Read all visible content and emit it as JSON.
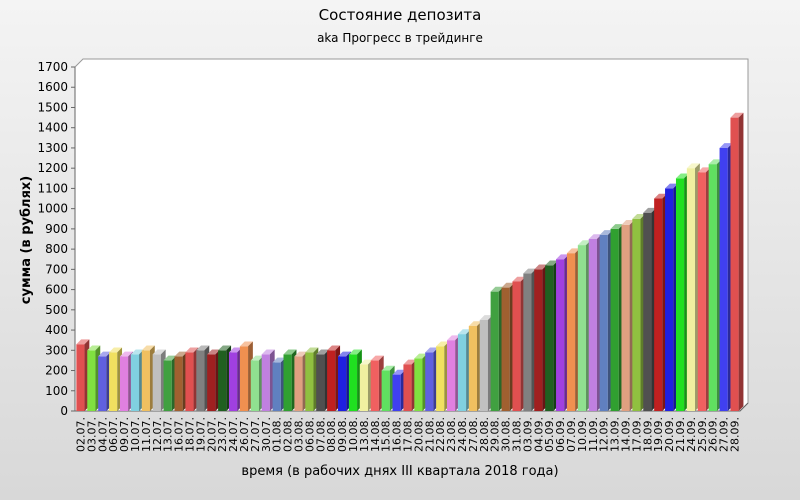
{
  "chart_data": {
    "type": "bar",
    "title": "Состояние депозита",
    "subtitle": "aka Прогресс в трейдинге",
    "x_label": "время (в рабочих днях III квартала 2018 года)",
    "y_label": "сумма (в рублях)",
    "categories": [
      "02.07.",
      "03.07.",
      "04.07.",
      "06.07.",
      "09.07.",
      "10.07.",
      "11.07.",
      "12.07.",
      "13.07.",
      "16.07.",
      "18.07.",
      "19.07.",
      "20.07.",
      "23.07.",
      "24.07.",
      "26.07.",
      "27.07.",
      "30.07.",
      "01.08.",
      "02.08.",
      "03.08.",
      "06.08.",
      "07.08.",
      "08.08.",
      "09.08.",
      "10.08.",
      "13.08.",
      "14.08.",
      "15.08.",
      "16.08.",
      "17.08.",
      "20.08.",
      "21.08.",
      "22.08.",
      "23.08.",
      "24.08.",
      "27.08.",
      "28.08.",
      "29.08.",
      "30.08.",
      "31.08.",
      "03.09.",
      "04.09.",
      "05.09.",
      "06.09.",
      "07.09.",
      "10.09.",
      "11.09.",
      "12.09.",
      "13.09.",
      "14.09.",
      "17.09.",
      "18.09.",
      "19.09.",
      "20.09.",
      "21.09.",
      "24.09.",
      "25.09.",
      "26.09.",
      "27.09.",
      "28.09."
    ],
    "values": [
      330,
      300,
      270,
      290,
      270,
      280,
      300,
      280,
      250,
      270,
      290,
      300,
      280,
      300,
      290,
      320,
      250,
      280,
      240,
      280,
      270,
      290,
      280,
      300,
      270,
      280,
      230,
      250,
      200,
      180,
      230,
      260,
      290,
      320,
      350,
      380,
      420,
      450,
      590,
      610,
      640,
      680,
      700,
      720,
      750,
      780,
      820,
      850,
      870,
      900,
      920,
      950,
      980,
      1050,
      1100,
      1150,
      1200,
      1180,
      1220,
      1300,
      1450
    ],
    "colors": [
      "#e05050",
      "#80e040",
      "#6060e0",
      "#f0e060",
      "#e080e0",
      "#80d0e0",
      "#f0c060",
      "#c0c0c0",
      "#40a040",
      "#a06030",
      "#e05050",
      "#808080",
      "#a02020",
      "#206020",
      "#a040e0",
      "#f09050",
      "#90e090",
      "#c080e0",
      "#6080c0",
      "#30a030",
      "#e0a080",
      "#90c040",
      "#505050",
      "#c02020",
      "#2020e0",
      "#20e020",
      "#f0f0a0",
      "#f06060",
      "#60e060",
      "#4040f0"
    ],
    "ylim": [
      0,
      1700
    ],
    "yticks": [
      0,
      100,
      200,
      300,
      400,
      500,
      600,
      700,
      800,
      900,
      1000,
      1100,
      1200,
      1300,
      1400,
      1500,
      1600,
      1700
    ],
    "grid": false
  }
}
